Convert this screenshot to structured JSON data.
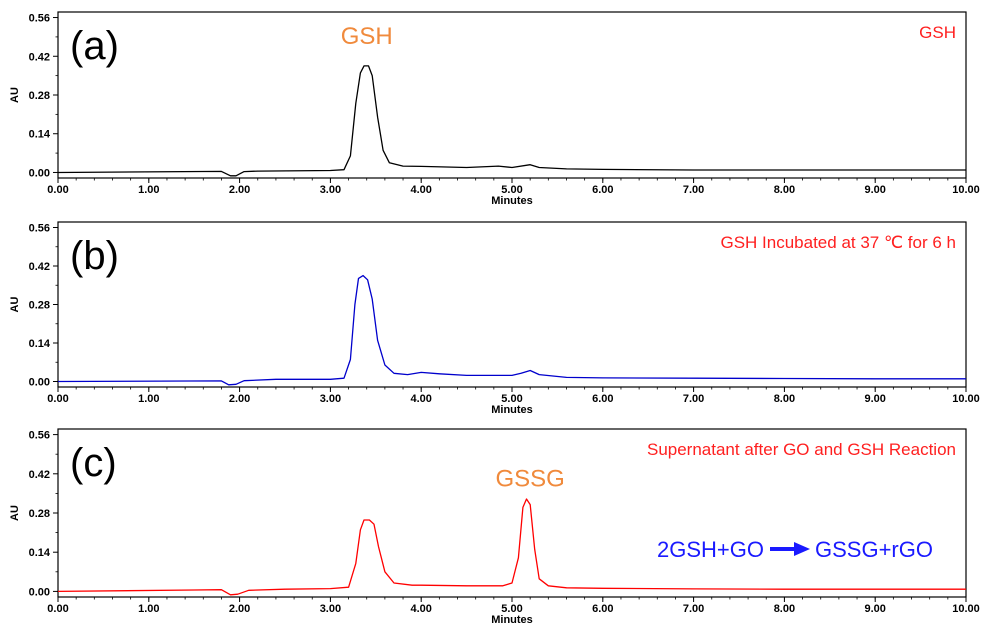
{
  "colors": {
    "axis": "#000000",
    "corner_label": "#ff2020",
    "peak_label": "#f08a3c",
    "equation": "#1a1aff",
    "arrow": "#1a1aff"
  },
  "chart_data": [
    {
      "type": "line",
      "panel_tag": "(a)",
      "corner_label": "GSH",
      "xlabel": "Minutes",
      "ylabel": "AU",
      "xlim": [
        0,
        10
      ],
      "ylim": [
        -0.02,
        0.58
      ],
      "x_ticks": [
        "0.00",
        "1.00",
        "2.00",
        "3.00",
        "4.00",
        "5.00",
        "6.00",
        "7.00",
        "8.00",
        "9.00",
        "10.00"
      ],
      "y_ticks": [
        "0.00",
        "0.14",
        "0.28",
        "0.42",
        "0.56"
      ],
      "peak_labels": [
        {
          "text": "GSH",
          "x": 3.4,
          "y": 0.465
        }
      ],
      "series": [
        {
          "color": "#000000",
          "points": [
            [
              0,
              0.0
            ],
            [
              1.8,
              0.004
            ],
            [
              1.9,
              -0.012
            ],
            [
              1.96,
              -0.012
            ],
            [
              2.05,
              0.003
            ],
            [
              2.2,
              0.005
            ],
            [
              3.0,
              0.007
            ],
            [
              3.15,
              0.01
            ],
            [
              3.22,
              0.06
            ],
            [
              3.28,
              0.25
            ],
            [
              3.33,
              0.36
            ],
            [
              3.37,
              0.385
            ],
            [
              3.42,
              0.385
            ],
            [
              3.46,
              0.35
            ],
            [
              3.52,
              0.2
            ],
            [
              3.58,
              0.08
            ],
            [
              3.65,
              0.035
            ],
            [
              3.8,
              0.023
            ],
            [
              4.0,
              0.022
            ],
            [
              4.5,
              0.018
            ],
            [
              4.85,
              0.023
            ],
            [
              5.0,
              0.018
            ],
            [
              5.2,
              0.028
            ],
            [
              5.3,
              0.018
            ],
            [
              5.6,
              0.013
            ],
            [
              6.0,
              0.011
            ],
            [
              7.0,
              0.009
            ],
            [
              8.0,
              0.009
            ],
            [
              9.0,
              0.009
            ],
            [
              10.0,
              0.009
            ]
          ]
        }
      ]
    },
    {
      "type": "line",
      "panel_tag": "(b)",
      "corner_label": "GSH Incubated at 37 ℃ for 6 h",
      "xlabel": "Minutes",
      "ylabel": "AU",
      "xlim": [
        0,
        10
      ],
      "ylim": [
        -0.02,
        0.58
      ],
      "x_ticks": [
        "0.00",
        "1.00",
        "2.00",
        "3.00",
        "4.00",
        "5.00",
        "6.00",
        "7.00",
        "8.00",
        "9.00",
        "10.00"
      ],
      "y_ticks": [
        "0.00",
        "0.14",
        "0.28",
        "0.42",
        "0.56"
      ],
      "peak_labels": [],
      "series": [
        {
          "color": "#0000cc",
          "points": [
            [
              0,
              0.0
            ],
            [
              1.8,
              0.002
            ],
            [
              1.88,
              -0.012
            ],
            [
              1.96,
              -0.01
            ],
            [
              2.05,
              0.003
            ],
            [
              2.4,
              0.008
            ],
            [
              3.0,
              0.008
            ],
            [
              3.15,
              0.012
            ],
            [
              3.22,
              0.08
            ],
            [
              3.27,
              0.28
            ],
            [
              3.31,
              0.375
            ],
            [
              3.36,
              0.385
            ],
            [
              3.41,
              0.37
            ],
            [
              3.46,
              0.3
            ],
            [
              3.52,
              0.15
            ],
            [
              3.6,
              0.06
            ],
            [
              3.7,
              0.03
            ],
            [
              3.85,
              0.025
            ],
            [
              4.0,
              0.033
            ],
            [
              4.2,
              0.028
            ],
            [
              4.5,
              0.022
            ],
            [
              5.0,
              0.022
            ],
            [
              5.1,
              0.03
            ],
            [
              5.2,
              0.04
            ],
            [
              5.3,
              0.025
            ],
            [
              5.6,
              0.015
            ],
            [
              6.0,
              0.013
            ],
            [
              7.0,
              0.012
            ],
            [
              8.0,
              0.011
            ],
            [
              9.0,
              0.01
            ],
            [
              10.0,
              0.01
            ]
          ]
        }
      ]
    },
    {
      "type": "line",
      "panel_tag": "(c)",
      "corner_label": "Supernatant after GO and GSH Reaction",
      "xlabel": "Minutes",
      "ylabel": "AU",
      "xlim": [
        0,
        10
      ],
      "ylim": [
        -0.02,
        0.58
      ],
      "x_ticks": [
        "0.00",
        "1.00",
        "2.00",
        "3.00",
        "4.00",
        "5.00",
        "6.00",
        "7.00",
        "8.00",
        "9.00",
        "10.00"
      ],
      "y_ticks": [
        "0.00",
        "0.14",
        "0.28",
        "0.42",
        "0.56"
      ],
      "peak_labels": [
        {
          "text": "GSSG",
          "x": 5.2,
          "y": 0.375
        }
      ],
      "equation": {
        "left": "2GSH+GO",
        "right": "GSSG+rGO"
      },
      "series": [
        {
          "color": "#ff0000",
          "points": [
            [
              0,
              0.0
            ],
            [
              1.5,
              0.005
            ],
            [
              1.8,
              0.006
            ],
            [
              1.9,
              -0.012
            ],
            [
              1.98,
              -0.01
            ],
            [
              2.1,
              0.004
            ],
            [
              2.5,
              0.008
            ],
            [
              3.0,
              0.01
            ],
            [
              3.2,
              0.015
            ],
            [
              3.28,
              0.1
            ],
            [
              3.33,
              0.22
            ],
            [
              3.37,
              0.255
            ],
            [
              3.43,
              0.255
            ],
            [
              3.48,
              0.24
            ],
            [
              3.53,
              0.16
            ],
            [
              3.6,
              0.07
            ],
            [
              3.7,
              0.03
            ],
            [
              3.9,
              0.022
            ],
            [
              4.0,
              0.022
            ],
            [
              4.5,
              0.02
            ],
            [
              4.9,
              0.02
            ],
            [
              5.0,
              0.03
            ],
            [
              5.07,
              0.12
            ],
            [
              5.12,
              0.3
            ],
            [
              5.16,
              0.33
            ],
            [
              5.2,
              0.31
            ],
            [
              5.25,
              0.15
            ],
            [
              5.3,
              0.045
            ],
            [
              5.4,
              0.02
            ],
            [
              5.6,
              0.013
            ],
            [
              6.0,
              0.011
            ],
            [
              7.0,
              0.009
            ],
            [
              8.0,
              0.008
            ],
            [
              9.0,
              0.008
            ],
            [
              10.0,
              0.008
            ]
          ]
        }
      ]
    }
  ]
}
